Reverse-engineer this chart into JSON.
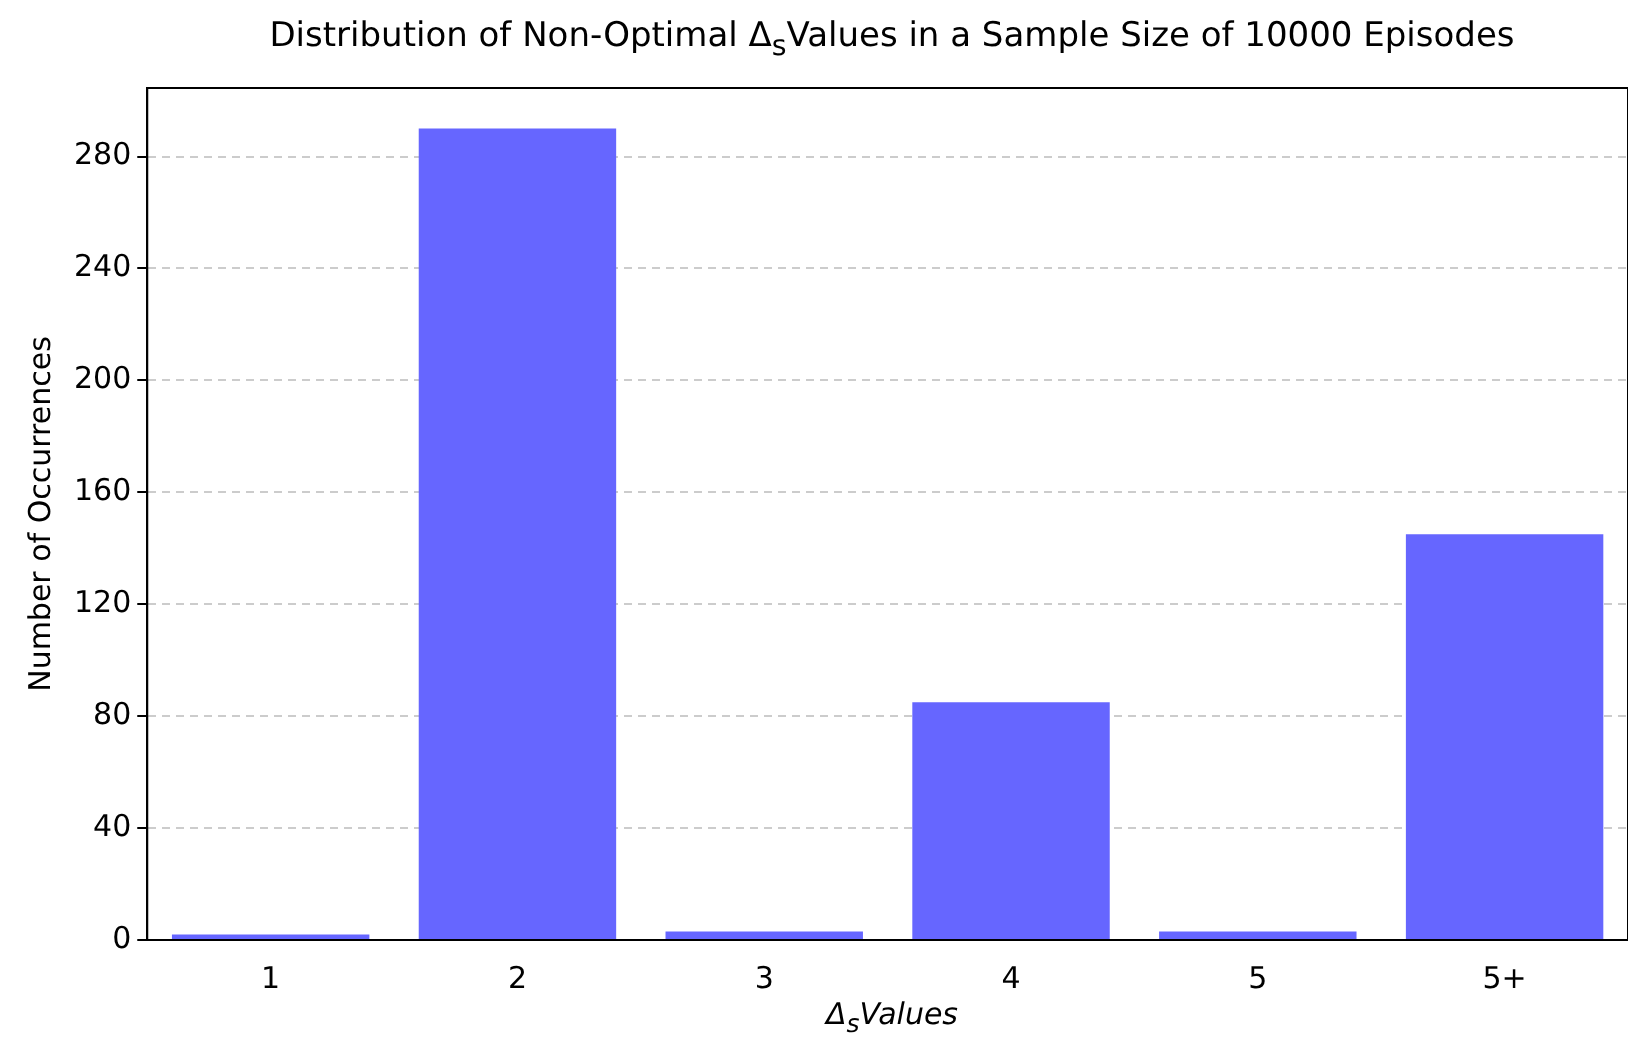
{
  "chart_data": {
    "type": "bar",
    "title": "Distribution of Non-Optimal Δ$_{s}$Values in a Sample Size of 10000 Episodes",
    "xlabel": "Δ$_{s}$Values",
    "ylabel": "Number of Occurrences",
    "categories": [
      "1",
      "2",
      "3",
      "4",
      "5",
      "5+"
    ],
    "values": [
      2,
      290,
      3,
      85,
      3,
      145
    ],
    "color": "#6666ff",
    "ylim": [
      0,
      304.5
    ],
    "yticks": [
      0,
      40,
      80,
      120,
      160,
      200,
      240,
      280
    ],
    "grid": "y",
    "legend": false
  }
}
